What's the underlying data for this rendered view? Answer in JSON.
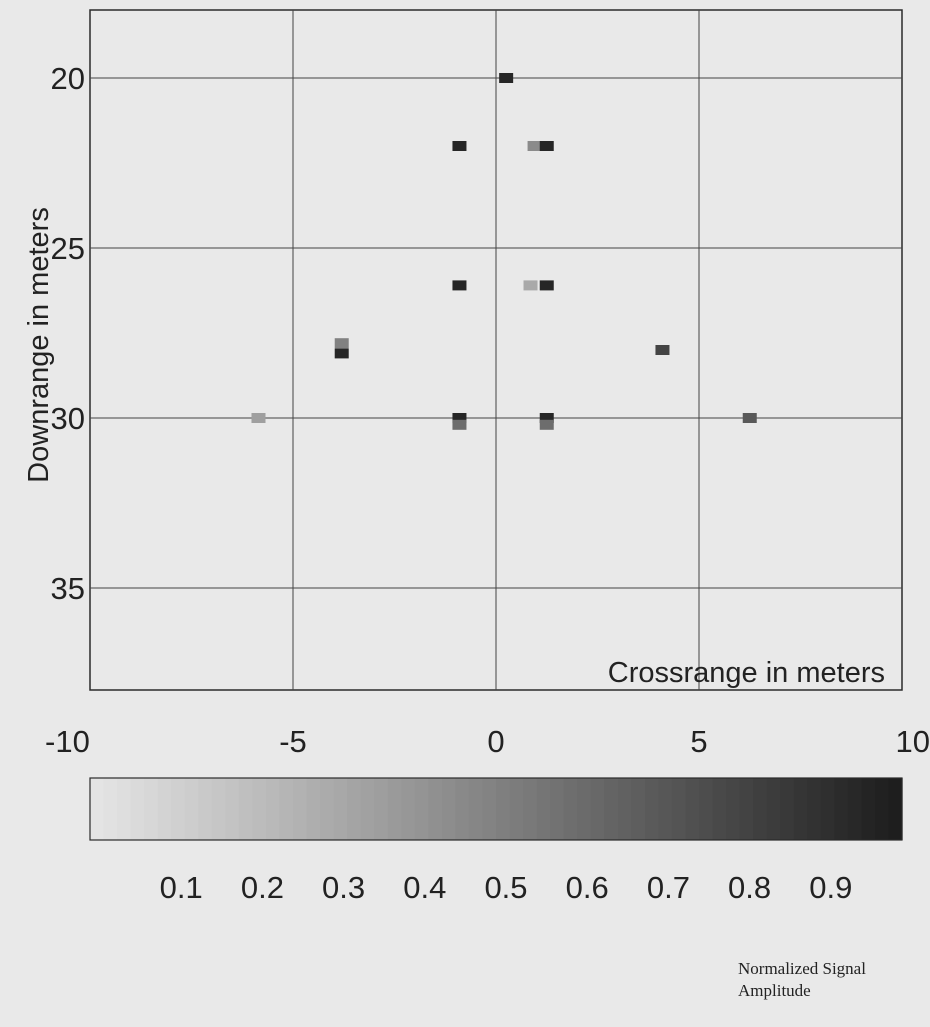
{
  "chart_data": {
    "type": "heatmap",
    "xlabel": "Crossrange in meters",
    "ylabel": "Downrange in meters",
    "xlim": [
      -10,
      10
    ],
    "ylim": [
      38,
      18
    ],
    "xticks": [
      "-10",
      "-5",
      "0",
      "5",
      "10"
    ],
    "xtick_values": [
      -10,
      -5,
      0,
      5,
      10
    ],
    "yticks": [
      "20",
      "25",
      "30",
      "35"
    ],
    "ytick_values": [
      20,
      25,
      30,
      35
    ],
    "grid": true,
    "points": [
      {
        "x": 0.25,
        "y": 20,
        "amplitude": 0.95
      },
      {
        "x": -0.9,
        "y": 22,
        "amplitude": 0.95
      },
      {
        "x": 0.95,
        "y": 22,
        "amplitude": 0.45
      },
      {
        "x": 1.25,
        "y": 22,
        "amplitude": 0.95
      },
      {
        "x": -0.9,
        "y": 26.1,
        "amplitude": 0.95
      },
      {
        "x": 0.85,
        "y": 26.1,
        "amplitude": 0.3
      },
      {
        "x": 1.25,
        "y": 26.1,
        "amplitude": 0.95
      },
      {
        "x": -3.8,
        "y": 27.8,
        "amplitude": 0.5
      },
      {
        "x": -3.8,
        "y": 28.1,
        "amplitude": 0.95
      },
      {
        "x": 4.1,
        "y": 28,
        "amplitude": 0.8
      },
      {
        "x": -5.85,
        "y": 30,
        "amplitude": 0.35
      },
      {
        "x": -0.9,
        "y": 30,
        "amplitude": 0.95
      },
      {
        "x": -0.9,
        "y": 30.2,
        "amplitude": 0.6
      },
      {
        "x": 1.25,
        "y": 30,
        "amplitude": 0.95
      },
      {
        "x": 1.25,
        "y": 30.2,
        "amplitude": 0.6
      },
      {
        "x": 6.25,
        "y": 30,
        "amplitude": 0.7
      }
    ],
    "colorbar": {
      "range": [
        0,
        1
      ],
      "ticks": [
        "0.1",
        "0.2",
        "0.3",
        "0.4",
        "0.5",
        "0.6",
        "0.7",
        "0.8",
        "0.9"
      ],
      "tick_values": [
        0.1,
        0.2,
        0.3,
        0.4,
        0.5,
        0.6,
        0.7,
        0.8,
        0.9
      ],
      "low_color": "#e6e6e6",
      "high_color": "#1c1c1c"
    },
    "colorbar_label_line1": "Normalized Signal",
    "colorbar_label_line2": "Amplitude"
  },
  "colors": {
    "background": "#e9e9e9",
    "axis": "#2a2a2a",
    "grid": "#444444"
  }
}
